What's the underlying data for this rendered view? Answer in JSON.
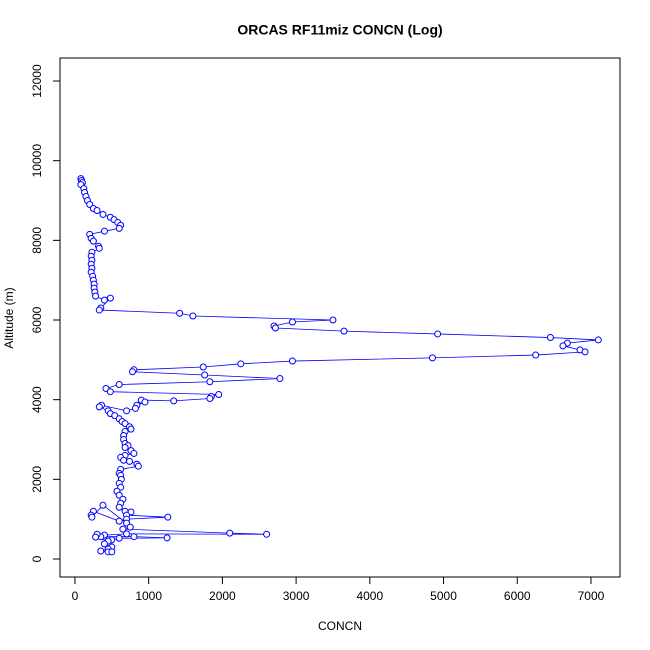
{
  "chart_data": {
    "type": "line",
    "markers": true,
    "color": "#0000ff",
    "title": "ORCAS RF11miz CONCN (Log)",
    "x_label": "CONCN",
    "y_label": "Altitude (m)",
    "xlim": [
      -203,
      7394
    ],
    "ylim": [
      -452,
      12578
    ],
    "xticks": [
      0,
      1000,
      2000,
      3000,
      4000,
      5000,
      6000,
      7000
    ],
    "yticks": [
      0,
      2000,
      4000,
      6000,
      8000,
      10000,
      12000
    ],
    "x": [
      80,
      90,
      100,
      80,
      120,
      130,
      150,
      170,
      200,
      250,
      300,
      380,
      480,
      530,
      580,
      620,
      600,
      400,
      200,
      220,
      250,
      320,
      330,
      230,
      220,
      230,
      220,
      230,
      220,
      240,
      250,
      260,
      260,
      270,
      280,
      400,
      480,
      350,
      330,
      1420,
      1600,
      3500,
      2950,
      2700,
      2720,
      3650,
      4920,
      6450,
      7100,
      6680,
      6620,
      6850,
      6920,
      6250,
      4850,
      2950,
      2250,
      1740,
      800,
      780,
      1760,
      2780,
      1830,
      600,
      420,
      480,
      1950,
      1850,
      1830,
      1340,
      900,
      950,
      840,
      820,
      700,
      360,
      330,
      450,
      480,
      540,
      600,
      640,
      680,
      740,
      760,
      680,
      660,
      660,
      680,
      720,
      680,
      760,
      800,
      680,
      620,
      660,
      740,
      840,
      860,
      620,
      600,
      620,
      630,
      600,
      620,
      570,
      600,
      650,
      620,
      600,
      680,
      760,
      700,
      1260,
      700,
      600,
      250,
      220,
      230,
      380,
      700,
      750,
      650,
      2100,
      2600,
      700,
      400,
      350,
      800,
      1250,
      600,
      500,
      300,
      280,
      450,
      400,
      500,
      450,
      350,
      450,
      500
    ],
    "values": [
      9550,
      9500,
      9450,
      9400,
      9300,
      9200,
      9100,
      9000,
      8900,
      8800,
      8750,
      8650,
      8580,
      8520,
      8450,
      8380,
      8300,
      8230,
      8150,
      8050,
      7980,
      7850,
      7800,
      7700,
      7600,
      7500,
      7400,
      7300,
      7200,
      7100,
      7000,
      6900,
      6800,
      6700,
      6600,
      6500,
      6550,
      6300,
      6250,
      6170,
      6100,
      6000,
      5950,
      5850,
      5800,
      5720,
      5650,
      5560,
      5500,
      5420,
      5350,
      5250,
      5200,
      5120,
      5050,
      4970,
      4900,
      4820,
      4750,
      4700,
      4620,
      4530,
      4450,
      4380,
      4280,
      4200,
      4130,
      4080,
      4030,
      3970,
      3990,
      3940,
      3860,
      3780,
      3720,
      3860,
      3820,
      3720,
      3650,
      3600,
      3520,
      3450,
      3400,
      3320,
      3260,
      3200,
      3100,
      3000,
      2900,
      2850,
      2800,
      2720,
      2650,
      2600,
      2550,
      2480,
      2450,
      2380,
      2330,
      2250,
      2150,
      2100,
      2000,
      1900,
      1800,
      1700,
      1600,
      1500,
      1400,
      1300,
      1200,
      1180,
      1100,
      1050,
      1000,
      950,
      1200,
      1100,
      1050,
      1350,
      900,
      800,
      750,
      650,
      620,
      630,
      600,
      560,
      560,
      530,
      520,
      480,
      620,
      550,
      450,
      380,
      300,
      250,
      200,
      180,
      180
    ]
  }
}
